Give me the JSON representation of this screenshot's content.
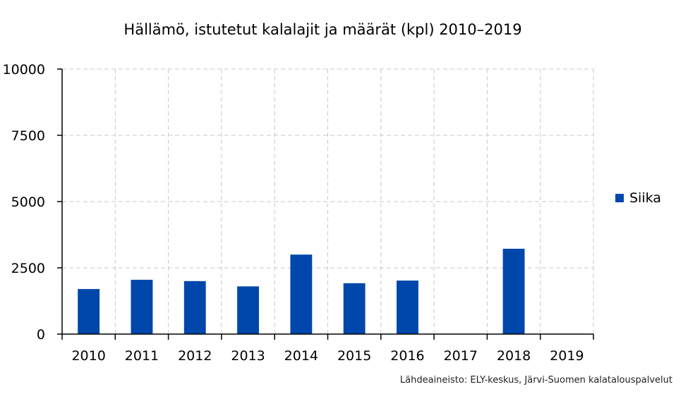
{
  "chart_data": {
    "type": "bar",
    "title": "Hällämö, istutetut kalalajit ja määrät (kpl) 2010–2019",
    "categories": [
      "2010",
      "2011",
      "2012",
      "2013",
      "2014",
      "2015",
      "2016",
      "2017",
      "2018",
      "2019"
    ],
    "series": [
      {
        "name": "Siika",
        "values": [
          1700,
          2050,
          2000,
          1800,
          3000,
          1920,
          2020,
          0,
          3220,
          0
        ],
        "color": "#0047AB"
      }
    ],
    "ylim": [
      0,
      10000
    ],
    "yticks": [
      "0",
      "2500",
      "5000",
      "7500",
      "10000"
    ],
    "grid": true,
    "legend_position": "right"
  },
  "source": "Lähdeaineisto: ELY-keskus, Järvi-Suomen kalatalouspalvelut"
}
